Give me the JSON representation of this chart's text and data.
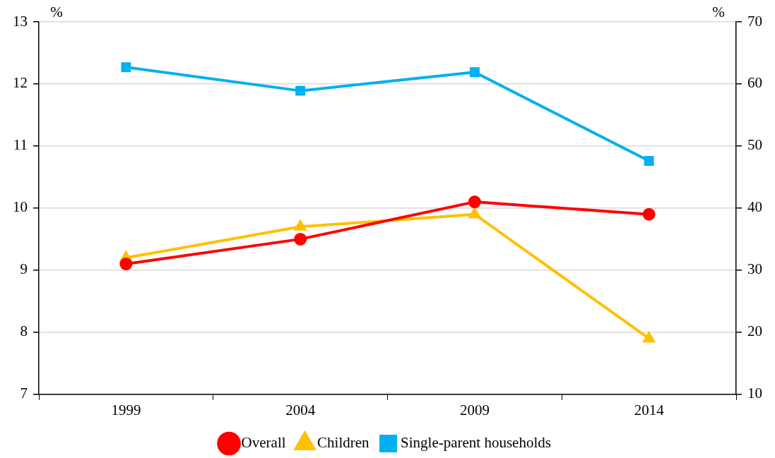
{
  "chart_data": {
    "type": "line",
    "ylabel": "%",
    "y2label": "%",
    "categories": [
      "1999",
      "2004",
      "2009",
      "2014"
    ],
    "series": [
      {
        "name": "Overall",
        "color": "#ff0000",
        "marker": "circle",
        "values": [
          9.1,
          9.5,
          10.1,
          9.9
        ]
      },
      {
        "name": "Children",
        "color": "#ffc000",
        "marker": "triangle",
        "values": [
          9.2,
          9.7,
          9.9,
          7.9
        ]
      },
      {
        "name": "Single-parent households",
        "color": "#00b0f0",
        "marker": "square",
        "axis": "y2",
        "values": [
          62.7,
          58.9,
          61.9,
          47.6
        ]
      }
    ],
    "ylim": [
      7,
      13
    ],
    "yticks": [
      7,
      8,
      9,
      10,
      11,
      12,
      13
    ],
    "y2lim": [
      10,
      70
    ],
    "y2ticks": [
      10,
      20,
      30,
      40,
      50,
      60,
      70
    ],
    "grid": "y",
    "legend": "bottom",
    "line_style": "solid"
  }
}
